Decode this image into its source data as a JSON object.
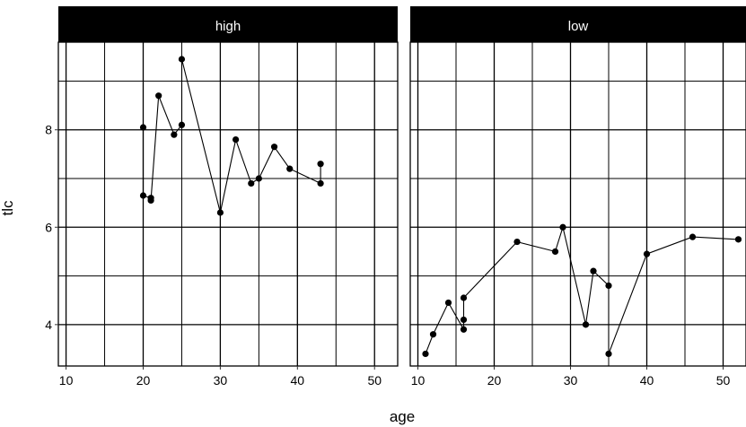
{
  "chart_data": {
    "type": "line",
    "xlabel": "age",
    "ylabel": "tlc",
    "xlim": [
      9,
      53
    ],
    "ylim": [
      3.15,
      9.8
    ],
    "x_major_ticks": [
      10,
      20,
      30,
      40,
      50
    ],
    "x_minor_ticks": [
      15,
      25,
      35,
      45
    ],
    "y_major_ticks": [
      4,
      6,
      8
    ],
    "y_minor_ticks": [
      5,
      7,
      9
    ],
    "grid": true,
    "colors": {
      "line": "#000000",
      "strip": "#000000",
      "strip_text": "#ffffff"
    },
    "panels": [
      {
        "name": "high",
        "points": [
          {
            "x": 20,
            "y": 8.05
          },
          {
            "x": 20,
            "y": 6.65
          },
          {
            "x": 21,
            "y": 6.6
          },
          {
            "x": 21,
            "y": 6.55
          },
          {
            "x": 22,
            "y": 8.7
          },
          {
            "x": 24,
            "y": 7.9
          },
          {
            "x": 25,
            "y": 8.1
          },
          {
            "x": 25,
            "y": 9.45
          },
          {
            "x": 30,
            "y": 6.3
          },
          {
            "x": 32,
            "y": 7.8
          },
          {
            "x": 34,
            "y": 6.9
          },
          {
            "x": 35,
            "y": 7.0
          },
          {
            "x": 37,
            "y": 7.65
          },
          {
            "x": 39,
            "y": 7.2
          },
          {
            "x": 43,
            "y": 6.9
          },
          {
            "x": 43,
            "y": 7.3
          }
        ]
      },
      {
        "name": "low",
        "points": [
          {
            "x": 11,
            "y": 3.4
          },
          {
            "x": 12,
            "y": 3.8
          },
          {
            "x": 14,
            "y": 4.45
          },
          {
            "x": 16,
            "y": 3.9
          },
          {
            "x": 16,
            "y": 4.1
          },
          {
            "x": 16,
            "y": 4.55
          },
          {
            "x": 23,
            "y": 5.7
          },
          {
            "x": 28,
            "y": 5.5
          },
          {
            "x": 29,
            "y": 6.0
          },
          {
            "x": 32,
            "y": 4.0
          },
          {
            "x": 33,
            "y": 5.1
          },
          {
            "x": 35,
            "y": 4.8
          },
          {
            "x": 35,
            "y": 3.4
          },
          {
            "x": 40,
            "y": 5.45
          },
          {
            "x": 46,
            "y": 5.8
          },
          {
            "x": 52,
            "y": 5.75
          }
        ]
      }
    ]
  }
}
